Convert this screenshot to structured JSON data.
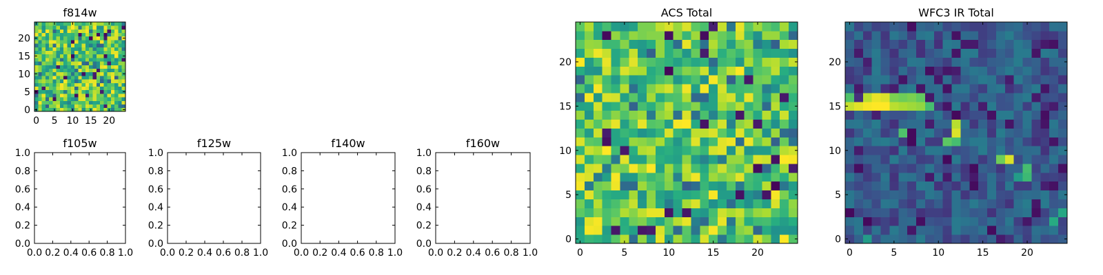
{
  "chart_data": [
    {
      "type": "heatmap",
      "title": "f814w",
      "xlim": [
        -0.5,
        24.5
      ],
      "ylim": [
        -0.5,
        24.5
      ],
      "xticks": [
        0,
        5,
        10,
        15,
        20
      ],
      "yticks": [
        0,
        5,
        10,
        15,
        20
      ],
      "grid_size": [
        25,
        25
      ],
      "colormap": "viridis",
      "seed": 814,
      "profile": "acs",
      "cell_density": "fine",
      "values": []
    },
    {
      "type": "scatter",
      "title": "f105w",
      "xlim": [
        0.0,
        1.0
      ],
      "ylim": [
        0.0,
        1.0
      ],
      "xticks": [
        "0.0",
        "0.2",
        "0.4",
        "0.6",
        "0.8",
        "1.0"
      ],
      "yticks": [
        "0.0",
        "0.2",
        "0.4",
        "0.6",
        "0.8",
        "1.0"
      ],
      "values": []
    },
    {
      "type": "scatter",
      "title": "f125w",
      "xlim": [
        0.0,
        1.0
      ],
      "ylim": [
        0.0,
        1.0
      ],
      "xticks": [
        "0.0",
        "0.2",
        "0.4",
        "0.6",
        "0.8",
        "1.0"
      ],
      "yticks": [
        "0.0",
        "0.2",
        "0.4",
        "0.6",
        "0.8",
        "1.0"
      ],
      "values": []
    },
    {
      "type": "scatter",
      "title": "f140w",
      "xlim": [
        0.0,
        1.0
      ],
      "ylim": [
        0.0,
        1.0
      ],
      "xticks": [
        "0.0",
        "0.2",
        "0.4",
        "0.6",
        "0.8",
        "1.0"
      ],
      "yticks": [
        "0.0",
        "0.2",
        "0.4",
        "0.6",
        "0.8",
        "1.0"
      ],
      "values": []
    },
    {
      "type": "scatter",
      "title": "f160w",
      "xlim": [
        0.0,
        1.0
      ],
      "ylim": [
        0.0,
        1.0
      ],
      "xticks": [
        "0.0",
        "0.2",
        "0.4",
        "0.6",
        "0.8",
        "1.0"
      ],
      "yticks": [
        "0.0",
        "0.2",
        "0.4",
        "0.6",
        "0.8",
        "1.0"
      ],
      "values": []
    },
    {
      "type": "heatmap",
      "title": "ACS Total",
      "xlim": [
        -0.5,
        24.5
      ],
      "ylim": [
        -0.5,
        24.5
      ],
      "xticks": [
        0,
        5,
        10,
        15,
        20
      ],
      "yticks": [
        0,
        5,
        10,
        15,
        20
      ],
      "grid_size": [
        25,
        25
      ],
      "colormap": "viridis",
      "seed": 1234,
      "profile": "acs",
      "values": []
    },
    {
      "type": "heatmap",
      "title": "WFC3 IR Total",
      "xlim": [
        -0.5,
        24.5
      ],
      "ylim": [
        -0.5,
        24.5
      ],
      "xticks": [
        0,
        5,
        10,
        15,
        20
      ],
      "yticks": [
        0,
        5,
        10,
        15,
        20
      ],
      "grid_size": [
        25,
        25
      ],
      "colormap": "viridis",
      "seed": 4321,
      "profile": "ir",
      "highlights": [
        {
          "x": 0,
          "y": 15,
          "v": 0.92
        },
        {
          "x": 1,
          "y": 15,
          "v": 0.96
        },
        {
          "x": 2,
          "y": 15,
          "v": 0.99
        },
        {
          "x": 3,
          "y": 15,
          "v": 1.0
        },
        {
          "x": 4,
          "y": 15,
          "v": 1.0
        },
        {
          "x": 5,
          "y": 15,
          "v": 0.9
        },
        {
          "x": 6,
          "y": 15,
          "v": 0.88
        },
        {
          "x": 7,
          "y": 15,
          "v": 0.86
        },
        {
          "x": 8,
          "y": 15,
          "v": 0.84
        },
        {
          "x": 9,
          "y": 15,
          "v": 0.7
        },
        {
          "x": 0,
          "y": 16,
          "v": 0.72
        },
        {
          "x": 2,
          "y": 16,
          "v": 0.9
        },
        {
          "x": 3,
          "y": 16,
          "v": 0.97
        },
        {
          "x": 4,
          "y": 16,
          "v": 0.95
        },
        {
          "x": 5,
          "y": 16,
          "v": 0.8
        },
        {
          "x": 6,
          "y": 16,
          "v": 0.78
        },
        {
          "x": 7,
          "y": 16,
          "v": 0.8
        },
        {
          "x": 8,
          "y": 16,
          "v": 0.76
        },
        {
          "x": 12,
          "y": 12,
          "v": 0.95
        },
        {
          "x": 12,
          "y": 13,
          "v": 0.9
        },
        {
          "x": 11,
          "y": 11,
          "v": 0.75
        },
        {
          "x": 12,
          "y": 11,
          "v": 0.7
        },
        {
          "x": 6,
          "y": 12,
          "v": 0.72
        },
        {
          "x": 18,
          "y": 9,
          "v": 0.95
        },
        {
          "x": 17,
          "y": 9,
          "v": 0.78
        },
        {
          "x": 20,
          "y": 8,
          "v": 0.7
        },
        {
          "x": 20,
          "y": 7,
          "v": 0.68
        },
        {
          "x": 19,
          "y": 7,
          "v": 0.55
        },
        {
          "x": 2,
          "y": 0,
          "v": 0.55
        },
        {
          "x": 23,
          "y": 2,
          "v": 0.62
        },
        {
          "x": 24,
          "y": 3,
          "v": 0.6
        }
      ],
      "values": []
    }
  ]
}
